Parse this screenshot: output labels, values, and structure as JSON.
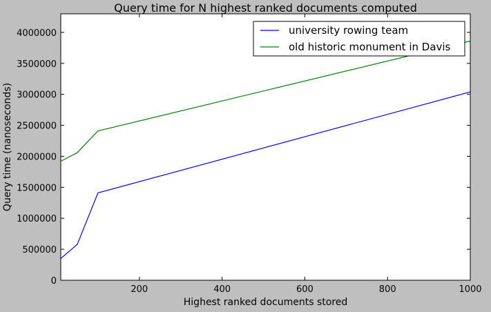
{
  "chart_data": {
    "type": "line",
    "title": "Query time for N highest ranked documents computed",
    "xlabel": "Highest ranked documents stored",
    "ylabel": "Query time (nanoseconds)",
    "xlim": [
      10,
      1000
    ],
    "ylim": [
      0,
      4300000
    ],
    "xticks": [
      200,
      400,
      600,
      800,
      1000
    ],
    "yticks": [
      0,
      500000,
      1000000,
      1500000,
      2000000,
      2500000,
      3000000,
      3500000,
      4000000
    ],
    "grid": false,
    "legend_position": "top-right",
    "series": [
      {
        "name": "university rowing team",
        "color": "#0000ff",
        "x": [
          10,
          50,
          100,
          1000
        ],
        "y": [
          350000,
          580000,
          1410000,
          3040000
        ]
      },
      {
        "name": "old historic monument in Davis",
        "color": "#008000",
        "x": [
          10,
          50,
          100,
          1000
        ],
        "y": [
          1920000,
          2060000,
          2410000,
          3860000
        ]
      }
    ]
  }
}
